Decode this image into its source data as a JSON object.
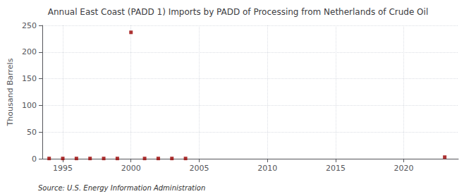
{
  "chart_data": {
    "type": "scatter",
    "title": "Annual East Coast (PADD 1) Imports by PADD of Processing from Netherlands of Crude Oil",
    "ylabel": "Thousand Barrels",
    "annotation": "Source: U.S. Energy Information Administration",
    "x": [
      1994,
      1995,
      1996,
      1997,
      1998,
      1999,
      2000,
      2001,
      2002,
      2003,
      2004,
      2023
    ],
    "values": [
      0.5,
      0.5,
      0.5,
      0.5,
      0.5,
      0.5,
      237,
      0.5,
      0.5,
      0.5,
      0.5,
      3
    ],
    "color": "#990000",
    "marker": "square",
    "xlim": [
      1993.5,
      2024
    ],
    "ylim": [
      0,
      250
    ],
    "xticks": [
      1995,
      2000,
      2005,
      2010,
      2015,
      2020
    ],
    "yticks": [
      0,
      50,
      100,
      150,
      200,
      250
    ],
    "grid": true
  }
}
